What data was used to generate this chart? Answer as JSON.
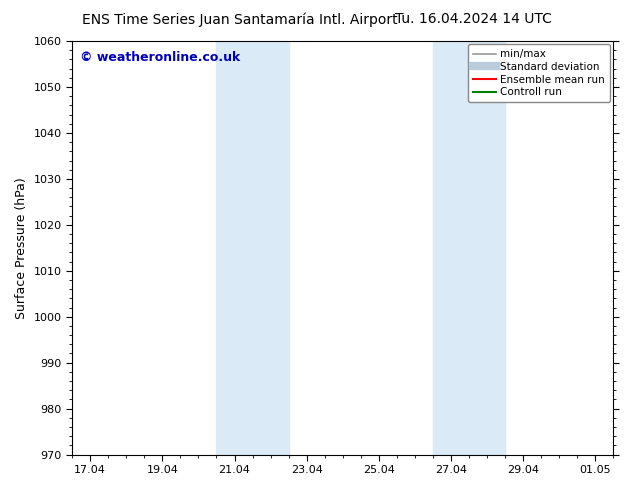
{
  "title_left": "ENS Time Series Juan Santamaría Intl. Airport",
  "title_right": "Tu. 16.04.2024 14 UTC",
  "ylabel": "Surface Pressure (hPa)",
  "ylim": [
    970,
    1060
  ],
  "yticks": [
    970,
    980,
    990,
    1000,
    1010,
    1020,
    1030,
    1040,
    1050,
    1060
  ],
  "xtick_labels": [
    "17.04",
    "19.04",
    "21.04",
    "23.04",
    "25.04",
    "27.04",
    "29.04",
    "01.05"
  ],
  "xtick_positions": [
    0,
    2,
    4,
    6,
    8,
    10,
    12,
    14
  ],
  "xlim": [
    -0.5,
    14.5
  ],
  "shade_regions": [
    {
      "xmin": 3.5,
      "xmax": 5.5
    },
    {
      "xmin": 9.5,
      "xmax": 11.5
    }
  ],
  "shade_color": "#daeaf6",
  "background_color": "#ffffff",
  "watermark_text": "© weatheronline.co.uk",
  "watermark_color": "#0000bb",
  "legend_items": [
    {
      "label": "min/max",
      "color": "#999999",
      "lw": 1.2,
      "style": "solid"
    },
    {
      "label": "Standard deviation",
      "color": "#bbccdd",
      "lw": 6,
      "style": "solid"
    },
    {
      "label": "Ensemble mean run",
      "color": "#ff0000",
      "lw": 1.5,
      "style": "solid"
    },
    {
      "label": "Controll run",
      "color": "#008000",
      "lw": 1.5,
      "style": "solid"
    }
  ],
  "title_fontsize": 10,
  "axis_fontsize": 9,
  "tick_fontsize": 8,
  "legend_fontsize": 7.5,
  "watermark_fontsize": 9
}
